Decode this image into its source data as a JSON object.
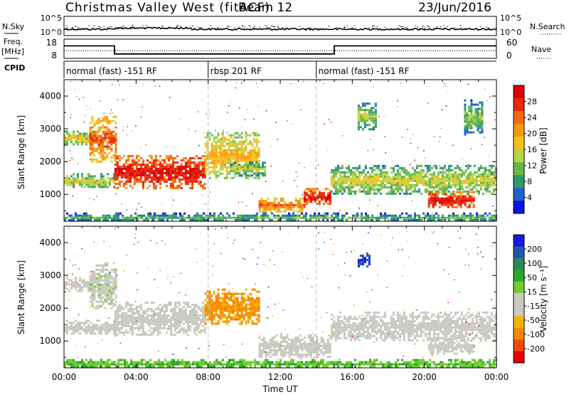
{
  "header": {
    "title": "Christmas Valley West (fitACF)",
    "beam": "Beam 12",
    "date": "23/Jun/2016"
  },
  "nsky_panel": {
    "left_label": "N.Sky",
    "right_label": "N.Search",
    "left_ticks": [
      "10^5",
      "10^0"
    ],
    "right_ticks": [
      "10^5",
      "10^0"
    ]
  },
  "freq_panel": {
    "left_label_1": "Freq.",
    "left_label_2": "[MHz]",
    "left_ticks": [
      "18",
      "8"
    ],
    "right_ticks": [
      "60",
      "0"
    ],
    "right_label": "Nave",
    "freq_mhz": [
      [
        0,
        14.5
      ],
      [
        2.8,
        14.5
      ],
      [
        2.8,
        10.3
      ],
      [
        15,
        10.3
      ],
      [
        15,
        14.5
      ],
      [
        24,
        14.5
      ]
    ],
    "nave": [
      [
        0,
        24
      ],
      [
        24,
        24
      ]
    ]
  },
  "cpid": {
    "label": "CPID",
    "segments": [
      {
        "start_hour": 0,
        "text": "normal (fast) -151 RF"
      },
      {
        "start_hour": 8,
        "text": "rbsp 201 RF"
      },
      {
        "start_hour": 14,
        "text": "normal (fast) -151 RF"
      }
    ]
  },
  "colors": {
    "power": [
      "#0a14e6",
      "#1e64c8",
      "#2f9a70",
      "#6ab84a",
      "#b9d24a",
      "#f4c21c",
      "#f79a12",
      "#f36a0c",
      "#e8280c",
      "#dd0000"
    ],
    "velocity": [
      "#e80000",
      "#f04a00",
      "#f58a00",
      "#f5b400",
      "#c9c9c0",
      "#c9c9c0",
      "#70cc30",
      "#2aa62a",
      "#2a8a5a",
      "#1f5aa8",
      "#1a1ae0"
    ]
  },
  "chart_data": [
    {
      "type": "heatmap",
      "name": "power",
      "ylabel": "Slant Range [km]",
      "x_range_hours": [
        0,
        24
      ],
      "ylim_km": [
        180,
        4500
      ],
      "y_ticks": [
        1000,
        2000,
        3000,
        4000
      ],
      "colorbar": {
        "label": "Power [dB]",
        "range": [
          0,
          32
        ],
        "ticks": [
          4,
          8,
          12,
          16,
          20,
          24,
          28
        ]
      },
      "regions": [
        {
          "t0": 0.0,
          "t1": 2.8,
          "r0": 1200,
          "r1": 1650,
          "level": 0.5
        },
        {
          "t0": 0.0,
          "t1": 1.6,
          "r0": 2500,
          "r1": 2950,
          "level": 0.55
        },
        {
          "t0": 1.4,
          "t1": 2.9,
          "r0": 2000,
          "r1": 3400,
          "level": 0.8
        },
        {
          "t0": 2.8,
          "t1": 7.8,
          "r0": 1200,
          "r1": 2200,
          "level": 0.95
        },
        {
          "t0": 7.8,
          "t1": 10.8,
          "r0": 1500,
          "r1": 2900,
          "level": 0.62
        },
        {
          "t0": 9.2,
          "t1": 11.2,
          "r0": 1600,
          "r1": 2000,
          "level": 0.45
        },
        {
          "t0": 10.8,
          "t1": 13.3,
          "r0": 500,
          "r1": 900,
          "level": 0.78
        },
        {
          "t0": 13.3,
          "t1": 14.8,
          "r0": 700,
          "r1": 1200,
          "level": 0.92
        },
        {
          "t0": 14.8,
          "t1": 24.0,
          "r0": 1000,
          "r1": 1900,
          "level": 0.5
        },
        {
          "t0": 20.2,
          "t1": 22.8,
          "r0": 600,
          "r1": 1100,
          "level": 0.95
        },
        {
          "t0": 16.3,
          "t1": 17.3,
          "r0": 3000,
          "r1": 3800,
          "level": 0.45
        },
        {
          "t0": 22.2,
          "t1": 23.2,
          "r0": 2800,
          "r1": 3900,
          "level": 0.4
        },
        {
          "t0": 0.0,
          "t1": 24.0,
          "r0": 200,
          "r1": 450,
          "level": 0.35
        }
      ]
    },
    {
      "type": "heatmap",
      "name": "velocity",
      "ylabel": "Slant Range [km]",
      "xlabel": "Time UT",
      "x_range_hours": [
        0,
        24
      ],
      "ylim_km": [
        180,
        4500
      ],
      "y_ticks": [
        1000,
        2000,
        3000,
        4000
      ],
      "x_ticks": [
        "00:00",
        "04:00",
        "08:00",
        "12:00",
        "16:00",
        "20:00",
        "00:00"
      ],
      "colorbar": {
        "label": "Velocity [m s⁻¹]",
        "ticks": [
          "200",
          "100",
          "50",
          "15",
          "-15",
          "-50",
          "-100",
          "-200"
        ]
      },
      "regions": [
        {
          "t0": 0.0,
          "t1": 2.8,
          "r0": 1200,
          "r1": 1650,
          "level": 0.45
        },
        {
          "t0": 0.0,
          "t1": 1.6,
          "r0": 2500,
          "r1": 2950,
          "level": 0.48
        },
        {
          "t0": 1.4,
          "t1": 2.9,
          "r0": 2000,
          "r1": 3400,
          "level": 0.5
        },
        {
          "t0": 2.8,
          "t1": 7.8,
          "r0": 1200,
          "r1": 2200,
          "level": 0.48
        },
        {
          "t0": 7.8,
          "t1": 10.8,
          "r0": 1500,
          "r1": 2600,
          "level": 0.25
        },
        {
          "t0": 10.8,
          "t1": 14.8,
          "r0": 500,
          "r1": 1200,
          "level": 0.48
        },
        {
          "t0": 14.8,
          "t1": 24.0,
          "r0": 1000,
          "r1": 1900,
          "level": 0.47
        },
        {
          "t0": 20.2,
          "t1": 22.8,
          "r0": 600,
          "r1": 1100,
          "level": 0.48
        },
        {
          "t0": 16.3,
          "t1": 17.0,
          "r0": 3300,
          "r1": 3700,
          "level": 0.92
        },
        {
          "t0": 0.0,
          "t1": 24.0,
          "r0": 200,
          "r1": 450,
          "level": 0.62
        }
      ]
    }
  ]
}
